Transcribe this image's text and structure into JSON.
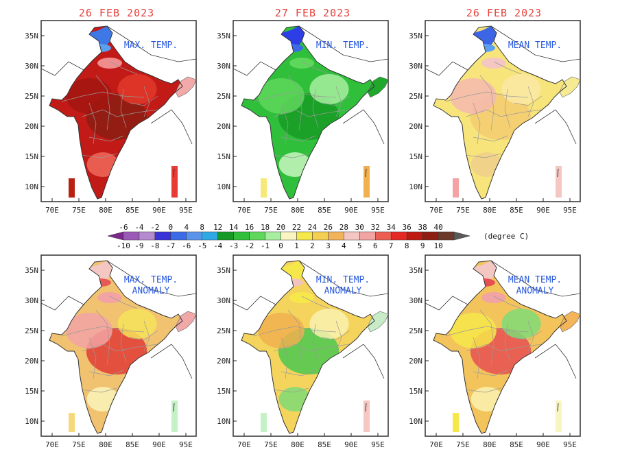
{
  "dates": [
    "26 FEB 2023",
    "27 FEB 2023",
    "26 FEB 2023"
  ],
  "panels": [
    {
      "label1": "MAX. TEMP.",
      "label2": "",
      "palette": "max",
      "base": "#c21a17",
      "blobs": [
        "#8b1e12",
        "#a31610",
        "#e23a2a",
        "#f06a5a"
      ],
      "north": "#3d78e6",
      "north2": "#5aa0ee",
      "ne": "#f3a9a9",
      "hills": "#ef8d8d",
      "islandA": "#b8200f",
      "islandB": "#e83b35"
    },
    {
      "label1": "MIN. TEMP.",
      "label2": "",
      "palette": "min",
      "base": "#2fbf3b",
      "blobs": [
        "#189a26",
        "#5ed75a",
        "#a8eea0",
        "#c8f4c0"
      ],
      "north": "#2d3ee6",
      "north2": "#3d6ae6",
      "ne": "#20a82c",
      "hills": "#5ed75a",
      "islandA": "#f6e97a",
      "islandB": "#f0b050"
    },
    {
      "label1": "MEAN TEMP.",
      "label2": "",
      "palette": "mean",
      "base": "#f7e47a",
      "blobs": [
        "#f5cd72",
        "#f4b8b0",
        "#fbe9a6",
        "#f0cf8c"
      ],
      "north": "#3d66e6",
      "north2": "#5aa0ee",
      "ne": "#f6ea92",
      "hills": "#f4c7c2",
      "islandA": "#f3a3a3",
      "islandB": "#f4c7c2"
    },
    {
      "label1": "MAX. TEMP.",
      "label2": "ANOMALY",
      "palette": "anom",
      "base": "#f1c270",
      "blobs": [
        "#e03c35",
        "#f2a3a3",
        "#f6e25a",
        "#f9f3b8"
      ],
      "north": "#f4c7c2",
      "north2": "#e65a55",
      "ne": "#f0a8a8",
      "hills": "#f2a3a3",
      "islandA": "#f6d97a",
      "islandB": "#c6f0c6"
    },
    {
      "label1": "MIN. TEMP.",
      "label2": "ANOMALY",
      "palette": "anom",
      "base": "#f5d45d",
      "blobs": [
        "#4bc850",
        "#f0b050",
        "#f9f1b0",
        "#7fdb75"
      ],
      "north": "#f6e84a",
      "north2": "#f3c3bd",
      "ne": "#c8ecc6",
      "hills": "#f6e84a",
      "islandA": "#c6f0c6",
      "islandB": "#f4c7c2"
    },
    {
      "label1": "MEAN TEMP.",
      "label2": "ANOMALY",
      "palette": "anom",
      "base": "#f3c45c",
      "blobs": [
        "#e65050",
        "#f6e84a",
        "#7fdb75",
        "#f9f1b0"
      ],
      "north": "#f4c7c2",
      "north2": "#e65050",
      "ne": "#f3b45a",
      "hills": "#f2a3a3",
      "islandA": "#f6e84a",
      "islandB": "#f9f5c2"
    }
  ],
  "axes": {
    "x_ticks": [
      "70E",
      "75E",
      "80E",
      "85E",
      "90E",
      "95E"
    ],
    "y_ticks": [
      "35N",
      "30N",
      "25N",
      "20N",
      "15N",
      "10N"
    ]
  },
  "colorbar": {
    "top_labels": [
      "-6",
      "-4",
      "-2",
      "0",
      "4",
      "8",
      "12",
      "14",
      "16",
      "18",
      "20",
      "22",
      "24",
      "26",
      "28",
      "30",
      "32",
      "34",
      "36",
      "38",
      "40"
    ],
    "bottom_labels": [
      "-10",
      "-9",
      "-8",
      "-7",
      "-6",
      "-5",
      "-4",
      "-3",
      "-2",
      "-1",
      "0",
      "1",
      "2",
      "3",
      "4",
      "5",
      "6",
      "7",
      "8",
      "9",
      "10"
    ],
    "colors": [
      "#7b2a8a",
      "#9b5ab8",
      "#b58ad0",
      "#3a33d8",
      "#3d6ae6",
      "#5a93ea",
      "#2fa8e6",
      "#169a25",
      "#2fbf3b",
      "#5ed75a",
      "#a8eea0",
      "#f9f5c2",
      "#f6e84a",
      "#f5cf52",
      "#f2b45a",
      "#f4c7c2",
      "#f2a3a3",
      "#ec5e52",
      "#e32b24",
      "#bd1a12",
      "#8e1d12",
      "#6b3a2a",
      "#5a5a5a"
    ],
    "unit": "(degree C)"
  }
}
